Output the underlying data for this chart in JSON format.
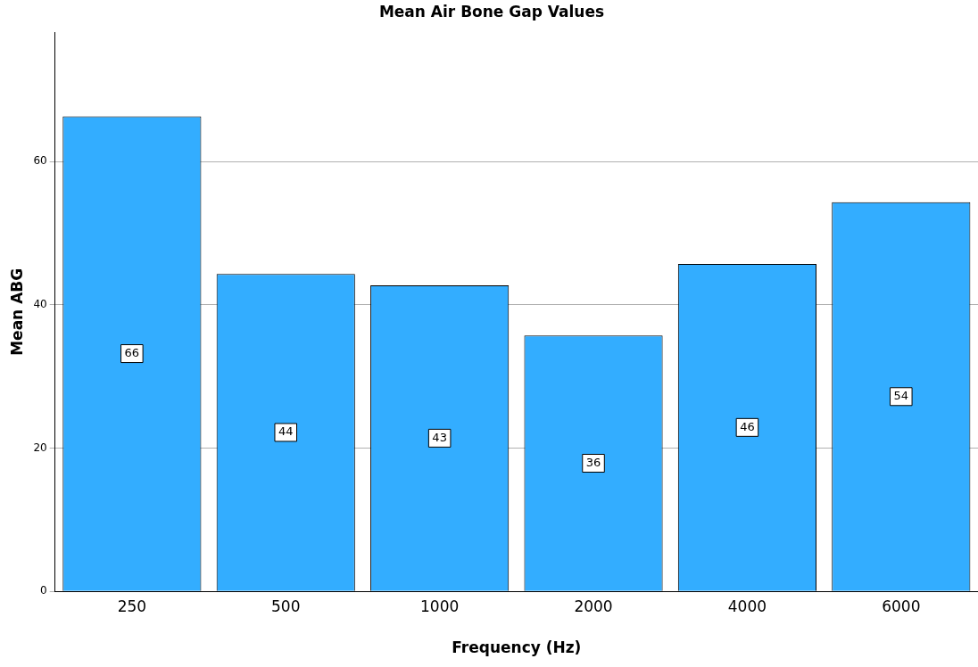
{
  "chart_data": {
    "type": "bar",
    "title": "Mean Air Bone Gap Values",
    "xlabel": "Frequency (Hz)",
    "ylabel": "Mean ABG",
    "categories": [
      "250",
      "500",
      "1000",
      "2000",
      "4000",
      "6000"
    ],
    "values": [
      66.3,
      44.3,
      42.7,
      35.7,
      45.7,
      54.3
    ],
    "value_labels": [
      "66",
      "44",
      "43",
      "36",
      "46",
      "54"
    ],
    "color": "#33adff",
    "ylim": [
      0,
      78
    ],
    "yticks": [
      0,
      20,
      40,
      60
    ],
    "grid": "y",
    "legend": false
  }
}
